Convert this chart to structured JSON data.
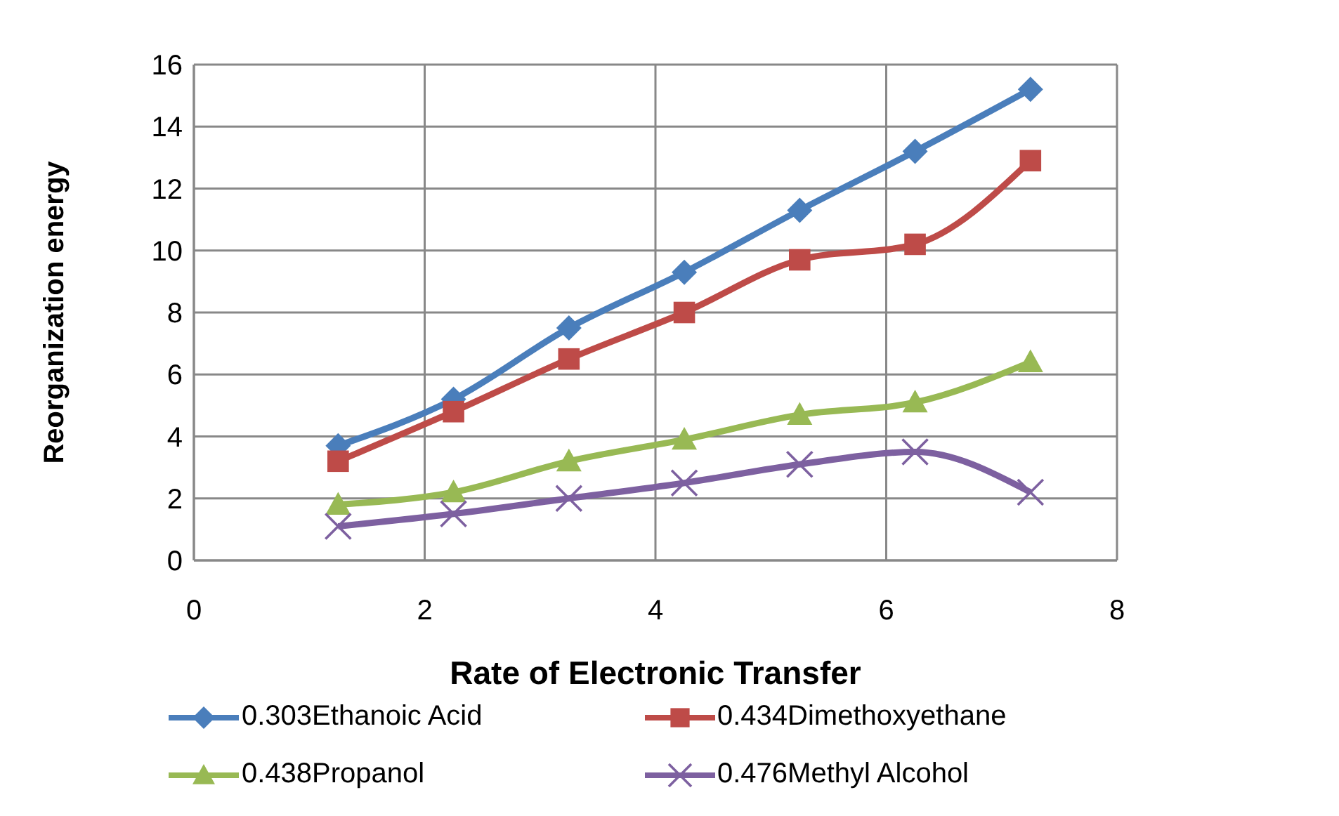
{
  "chart_data": {
    "type": "line",
    "xlabel": "Rate of Electronic Transfer",
    "ylabel": "Reorganization  energy",
    "x": [
      1.25,
      2.25,
      3.25,
      4.25,
      5.25,
      6.25,
      7.25
    ],
    "series": [
      {
        "name": "0.303Ethanoic Acid",
        "color": "#4a7ebb",
        "marker": "diamond",
        "values": [
          3.7,
          5.2,
          7.5,
          9.3,
          11.3,
          13.2,
          15.2
        ]
      },
      {
        "name": "0.434Dimethoxyethane",
        "color": "#be4b48",
        "marker": "square",
        "values": [
          3.2,
          4.8,
          6.5,
          8.0,
          9.7,
          10.2,
          12.9
        ]
      },
      {
        "name": "0.438Propanol",
        "color": "#98b954",
        "marker": "triangle",
        "values": [
          1.8,
          2.2,
          3.2,
          3.9,
          4.7,
          5.1,
          6.4
        ]
      },
      {
        "name": "0.476Methyl Alcohol",
        "color": "#7d60a0",
        "marker": "cross",
        "values": [
          1.1,
          1.5,
          2.0,
          2.5,
          3.1,
          3.5,
          2.2
        ]
      }
    ],
    "xlim": [
      0,
      8
    ],
    "xticks": [
      0,
      2,
      4,
      6,
      8
    ],
    "ylim": [
      0,
      16
    ],
    "yticks": [
      0,
      2,
      4,
      6,
      8,
      10,
      12,
      14,
      16
    ],
    "grid": true,
    "legend": "bottom",
    "line_style": "solid"
  }
}
